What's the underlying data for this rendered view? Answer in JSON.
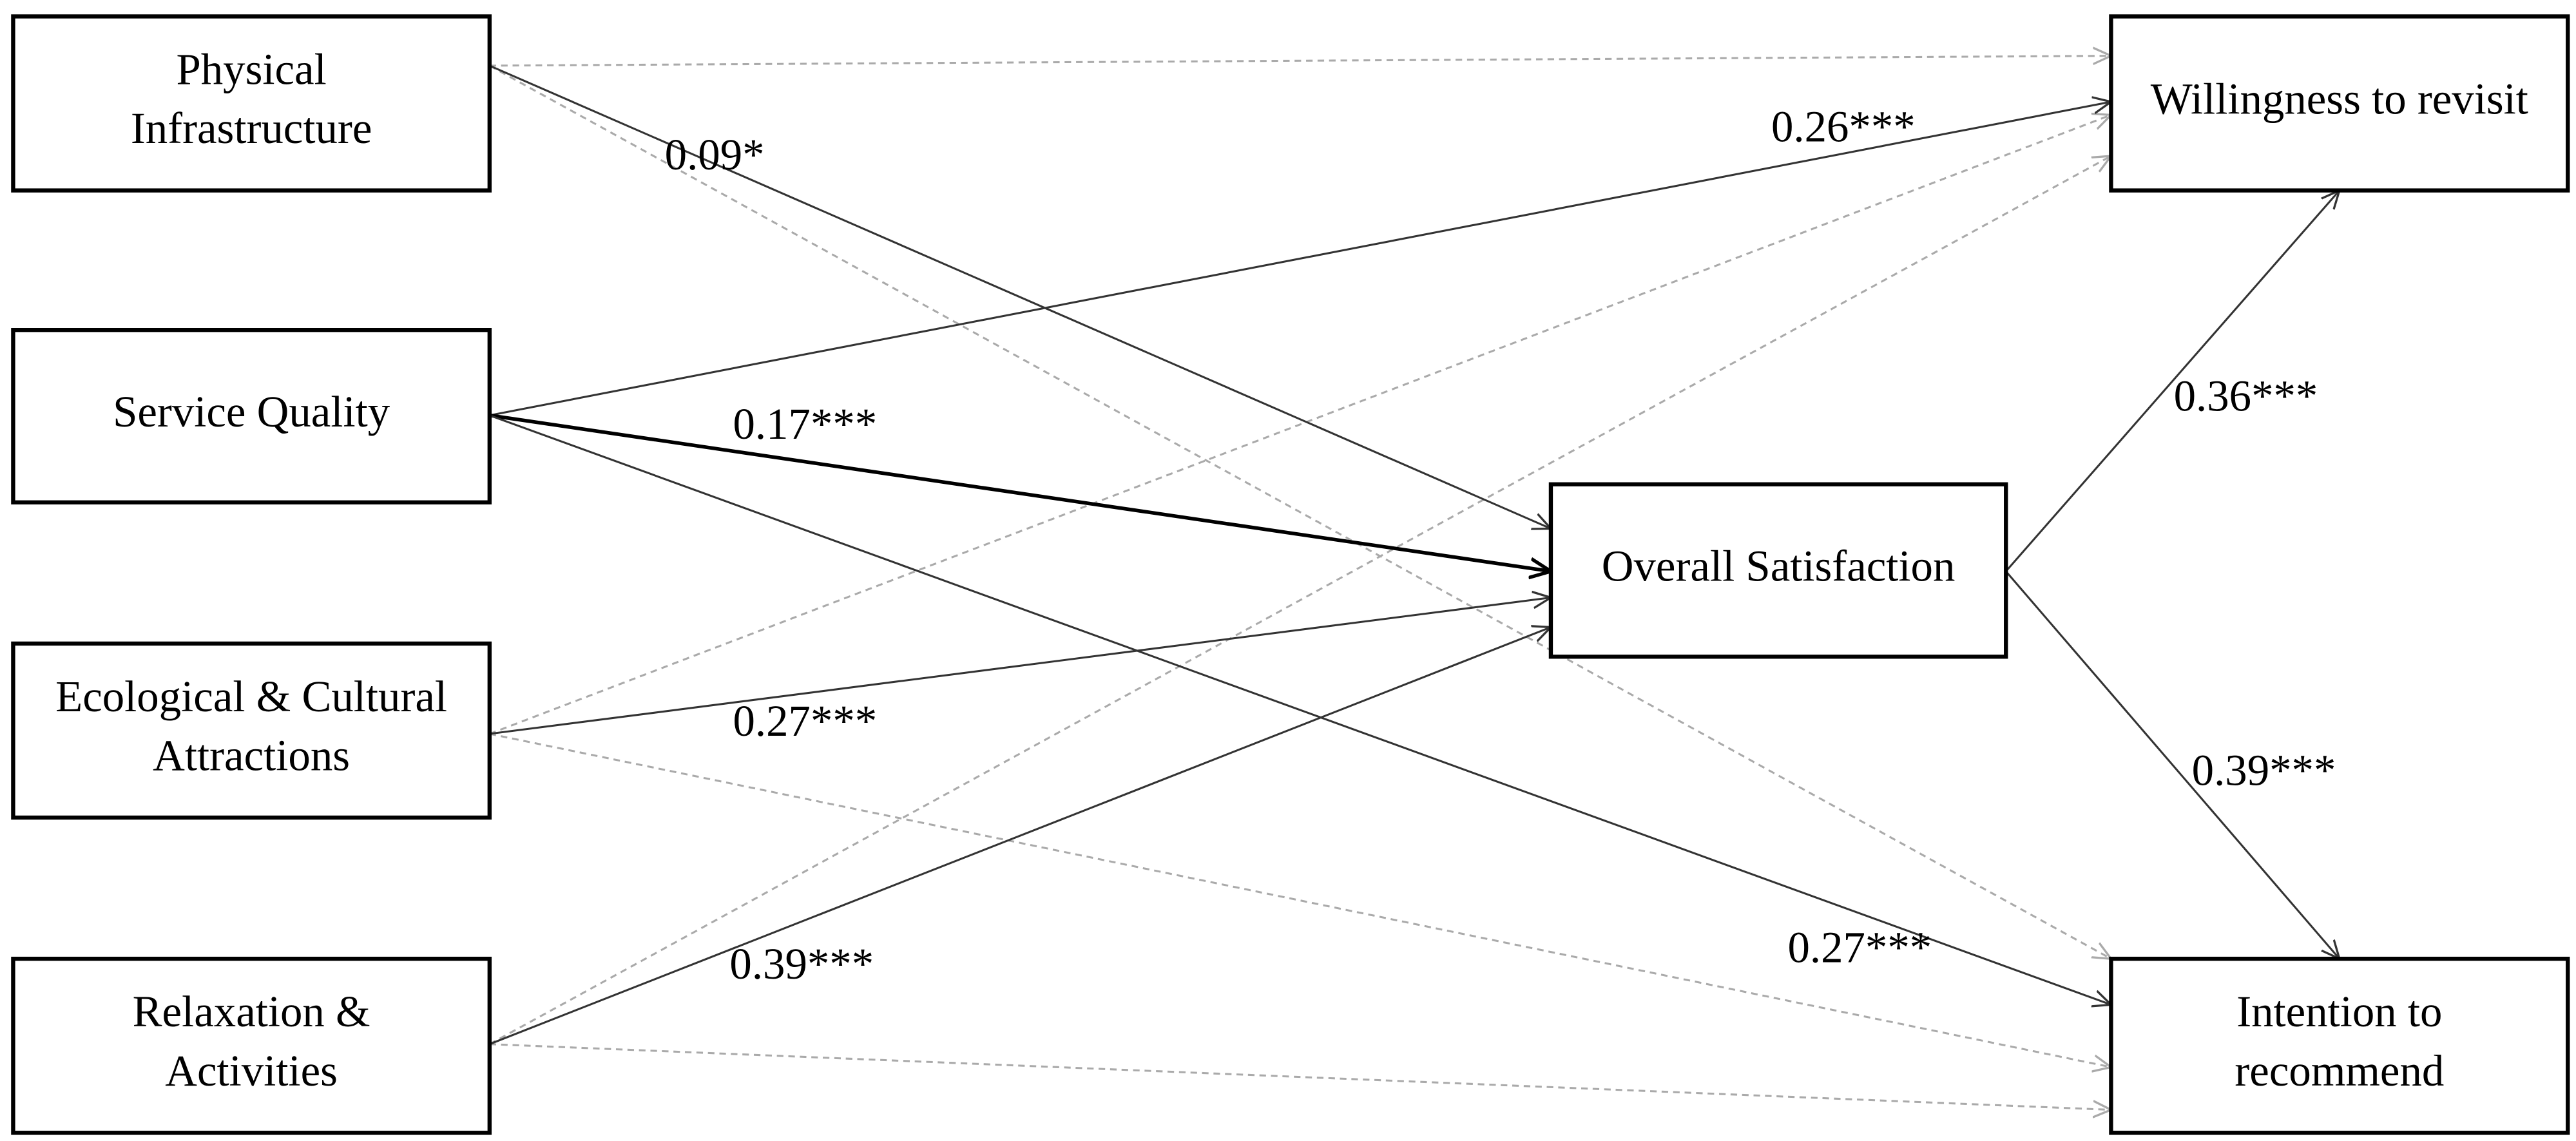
{
  "nodes": [
    {
      "label": [
        "Physical",
        "Infrastructure"
      ]
    },
    {
      "label": [
        "Service Quality"
      ]
    },
    {
      "label": [
        "Ecological & Cultural",
        "Attractions"
      ]
    },
    {
      "label": [
        "Relaxation &",
        "Activities"
      ]
    },
    {
      "label": [
        "Overall Satisfaction"
      ]
    },
    {
      "label": [
        "Willingness to revisit"
      ]
    },
    {
      "label": [
        "Intention to",
        "recommend"
      ]
    }
  ],
  "edges": [
    {
      "label": "0.09*"
    },
    {
      "label": "0.26***"
    },
    {
      "label": "0.17***"
    },
    {
      "label": "0.27***"
    },
    {
      "label": "0.27***"
    },
    {
      "label": "0.39***"
    },
    {
      "label": "0.36***"
    },
    {
      "label": "0.39***"
    }
  ]
}
